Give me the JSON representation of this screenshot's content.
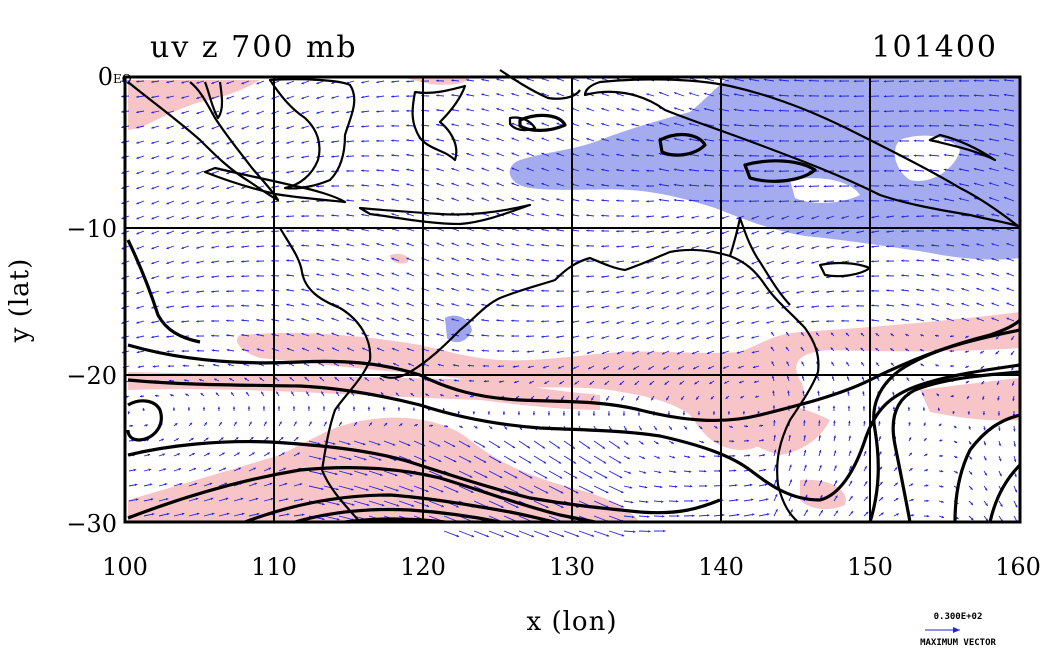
{
  "chart_data": {
    "type": "vector",
    "title": "uv z 700 mb",
    "timestamp": "101400",
    "xlabel": "x (lon)",
    "ylabel": "y (lat)",
    "xlim": [
      100,
      160
    ],
    "ylim": [
      -30,
      0
    ],
    "x_ticks": [
      100,
      110,
      120,
      130,
      140,
      150,
      160
    ],
    "x_tick_labels": [
      "100",
      "110",
      "120",
      "130",
      "140",
      "150",
      "160"
    ],
    "y_ticks": [
      0,
      -10,
      -20,
      -30
    ],
    "y_tick_labels": [
      "0",
      "−10",
      "−20",
      "−30"
    ],
    "corner_label": "EQ",
    "grid": true,
    "fields": [
      "geopotential height contours",
      "wind vectors",
      "positive / negative shading"
    ],
    "shading_colors": {
      "positive": "#f7c4c8",
      "negative": "#9fa6ee"
    },
    "vector_color": "#2222dd",
    "reference_vector": {
      "value_label": "0.300E+02",
      "caption": "MAXIMUM VECTOR"
    }
  }
}
